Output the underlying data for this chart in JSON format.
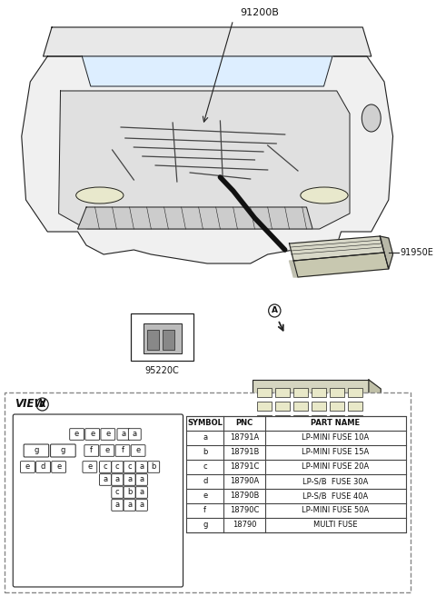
{
  "bg_color": "#ffffff",
  "diagram_label_91200B": "91200B",
  "diagram_label_91950E": "91950E",
  "diagram_label_95220C": "95220C",
  "line_color": "#222222",
  "text_color": "#111111",
  "dashed_border_color": "#888888",
  "table_border_color": "#444444",
  "table_headers": [
    "SYMBOL",
    "PNC",
    "PART NAME"
  ],
  "table_rows": [
    [
      "a",
      "18791A",
      "LP-MINI FUSE 10A"
    ],
    [
      "b",
      "18791B",
      "LP-MINI FUSE 15A"
    ],
    [
      "c",
      "18791C",
      "LP-MINI FUSE 20A"
    ],
    [
      "d",
      "18790A",
      "LP-S/B  FUSE 30A"
    ],
    [
      "e",
      "18790B",
      "LP-S/B  FUSE 40A"
    ],
    [
      "f",
      "18790C",
      "LP-MINI FUSE 50A"
    ],
    [
      "g",
      "18790",
      "MULTI FUSE"
    ]
  ],
  "fuse_row1": [
    "e",
    "e",
    "e",
    "a",
    "a"
  ],
  "fuse_row2_left": [
    "g",
    "g"
  ],
  "fuse_row2_right": [
    "f",
    "e",
    "f",
    "e"
  ],
  "fuse_row3_left": [
    "e",
    "d",
    "e",
    "",
    "e"
  ],
  "fuse_row3_right": [
    "c",
    "c",
    "c",
    "a",
    "b"
  ],
  "fuse_row4": [
    "a",
    "a",
    "a",
    "a"
  ],
  "fuse_row5": [
    "c",
    "b",
    "a"
  ],
  "fuse_row6": [
    "a",
    "a",
    "a"
  ]
}
